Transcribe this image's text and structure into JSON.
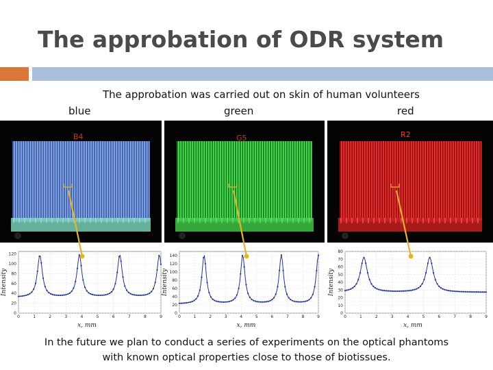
{
  "slide": {
    "title": "The approbation of ODR system",
    "subtitle": "The approbation was carried out on skin of human volunteers",
    "footer": "In the future we plan to conduct a series of experiments on the optical phantoms with known optical properties close to those of biotissues."
  },
  "colors": {
    "accent_orange": "#d9773b",
    "accent_blue": "#a7bfd9",
    "arrow": "#e8b320",
    "plot_line": "#1f2f9e"
  },
  "panels": [
    {
      "label": "blue",
      "photo_label": "B4",
      "photo_label_color": "#c0392b",
      "stripe_color": "#b9c4ff",
      "base_color": "#3b72c8",
      "band_color": "#7fdcc0",
      "plot": {
        "ylabel": "Intensity",
        "xlabel": "x, mm",
        "yticks": [
          "0",
          "20",
          "40",
          "60",
          "80",
          "100",
          "120"
        ],
        "xticks": [
          "0",
          "1",
          "2",
          "3",
          "4",
          "5",
          "6",
          "7",
          "8",
          "9"
        ],
        "ylim": [
          0,
          125
        ],
        "xlim": [
          0,
          9
        ],
        "peaks": [
          1.35,
          3.85,
          6.4,
          8.9
        ],
        "base": 32,
        "amp": 85,
        "width": 0.28
      }
    },
    {
      "label": "green",
      "photo_label": "G5",
      "photo_label_color": "#c0392b",
      "stripe_color": "#7bff7b",
      "base_color": "#0a9a1a",
      "band_color": "#42d24a",
      "plot": {
        "ylabel": "Intensity",
        "xlabel": "x, mm",
        "yticks": [
          "0",
          "20",
          "40",
          "60",
          "80",
          "100",
          "120",
          "140"
        ],
        "xticks": [
          "0",
          "1",
          "2",
          "3",
          "4",
          "5",
          "6",
          "7",
          "8",
          "9"
        ],
        "ylim": [
          0,
          150
        ],
        "xlim": [
          0,
          9
        ],
        "peaks": [
          1.6,
          4.1,
          6.6,
          9.0
        ],
        "base": 22,
        "amp": 118,
        "width": 0.26
      }
    },
    {
      "label": "red",
      "photo_label": "R2",
      "photo_label_color": "#e04040",
      "stripe_color": "#ff4a4a",
      "base_color": "#b80a0a",
      "band_color": "#d42020",
      "plot": {
        "ylabel": "Intensity",
        "xlabel": "x, mm",
        "yticks": [
          "0",
          "10",
          "20",
          "30",
          "40",
          "50",
          "60",
          "70",
          "80"
        ],
        "xticks": [
          "0",
          "1",
          "2",
          "3",
          "4",
          "5",
          "6",
          "7",
          "8",
          "9"
        ],
        "ylim": [
          0,
          80
        ],
        "xlim": [
          0,
          9
        ],
        "peaks": [
          1.2,
          5.4
        ],
        "base": 27,
        "amp": 45,
        "width": 0.4
      }
    }
  ]
}
